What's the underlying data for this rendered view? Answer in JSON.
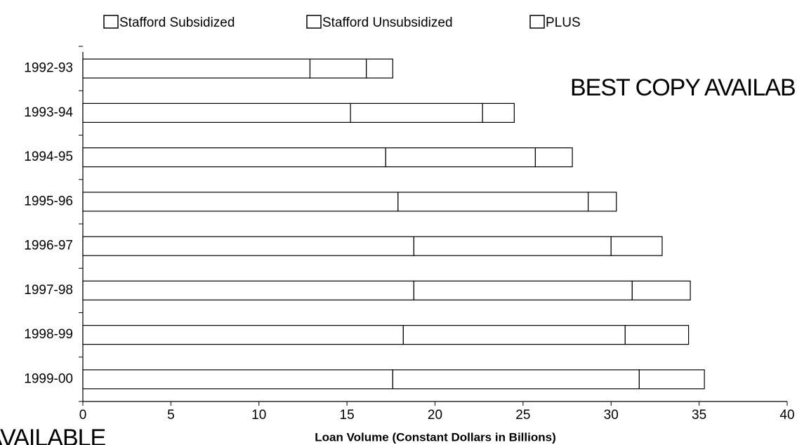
{
  "chart_data": {
    "type": "stacked-bar-horizontal",
    "x_label": "Loan Volume (Constant Dollars in Billions)",
    "categories": [
      "1992-93",
      "1993-94",
      "1994-95",
      "1995-96",
      "1996-97",
      "1997-98",
      "1998-99",
      "1999-00"
    ],
    "series": [
      {
        "name": "Stafford Subsidized",
        "color": "#ffffff",
        "values": [
          12.9,
          15.2,
          17.2,
          17.9,
          18.8,
          18.8,
          18.2,
          17.6
        ]
      },
      {
        "name": "Stafford Unsubsidized",
        "color": "#ffffff",
        "values": [
          3.2,
          7.5,
          8.5,
          10.8,
          11.2,
          12.4,
          12.6,
          14.0
        ]
      },
      {
        "name": "PLUS",
        "color": "#ffffff",
        "values": [
          1.5,
          1.8,
          2.1,
          1.6,
          2.9,
          3.3,
          3.6,
          3.7
        ]
      }
    ],
    "xlim": [
      0,
      40
    ],
    "xticks": [
      0,
      5,
      10,
      15,
      20,
      25,
      30,
      35,
      40
    ],
    "grid": false,
    "legend": "top",
    "annotations": [
      "BEST COPY AVAILABLE",
      "BEST COPY AVAILABLE"
    ]
  }
}
